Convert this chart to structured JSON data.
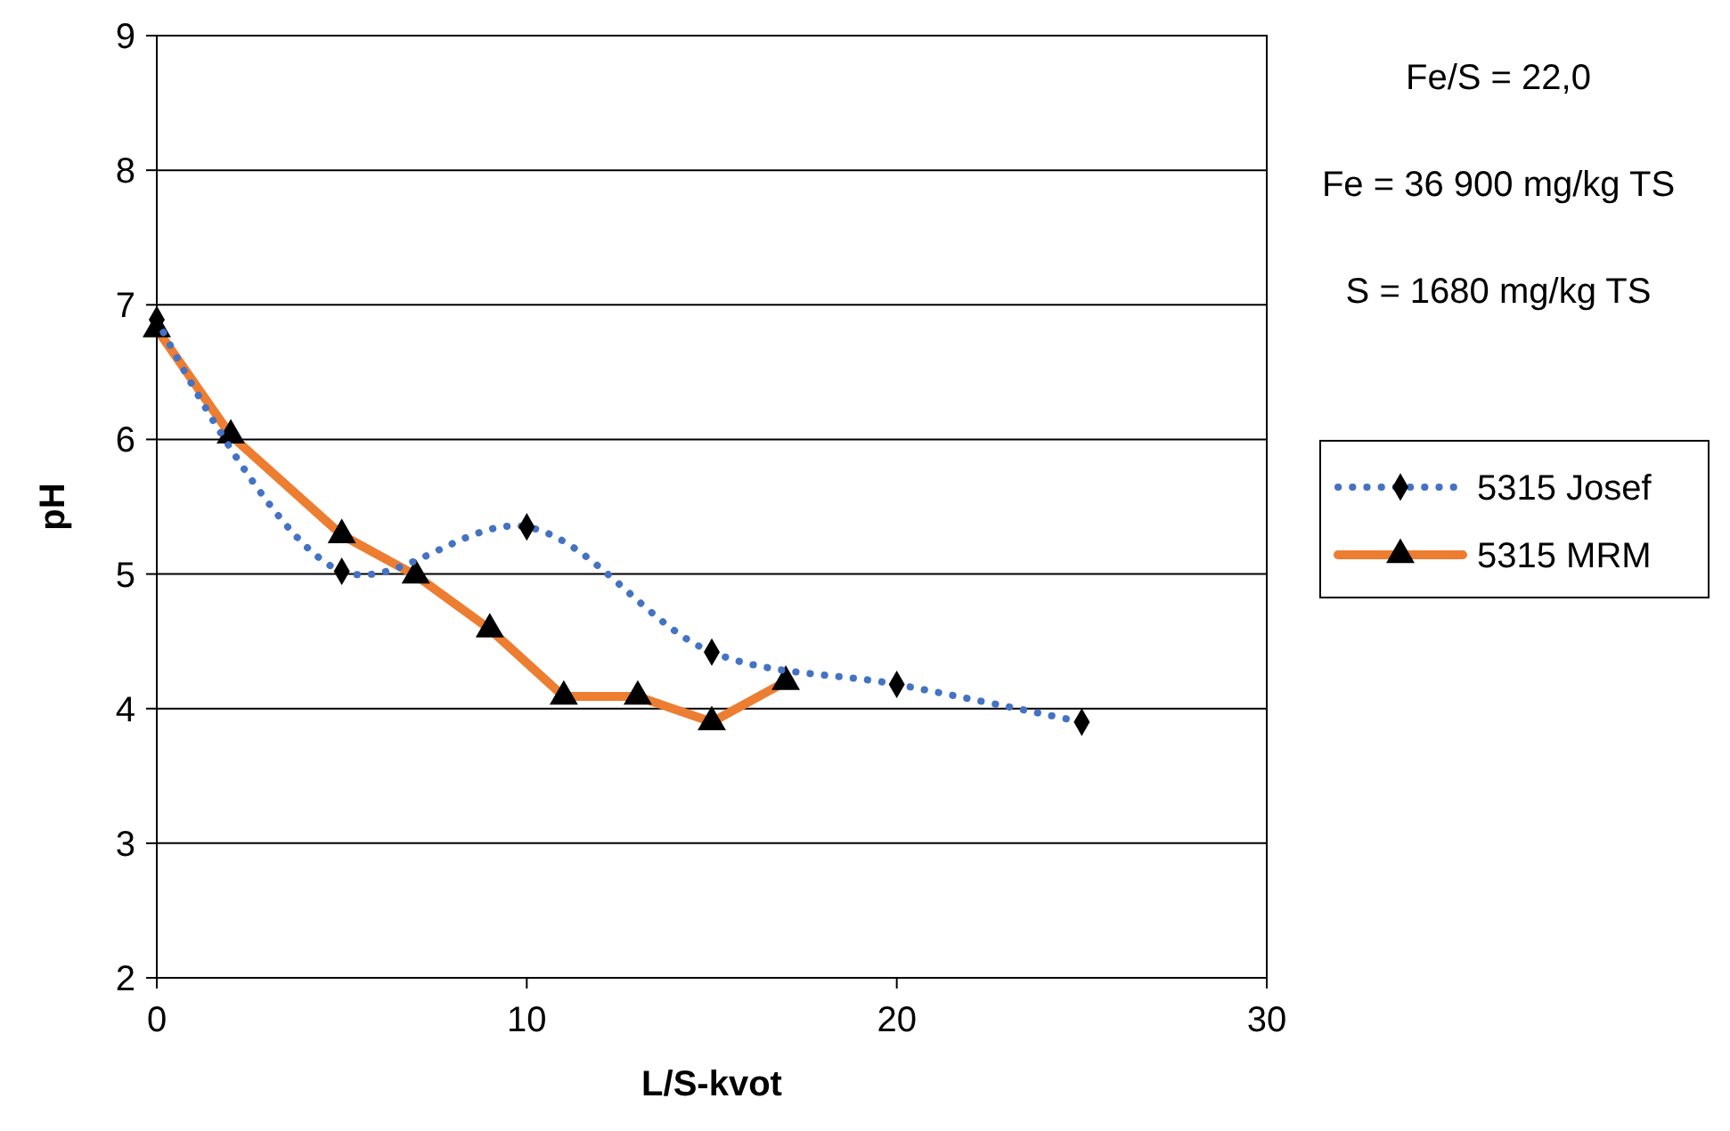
{
  "chart_data": {
    "type": "line",
    "xlabel": "L/S-kvot",
    "ylabel": "pH",
    "xlim": [
      0,
      30
    ],
    "xticks": [
      0,
      10,
      20,
      30
    ],
    "ylim": [
      2,
      9
    ],
    "yticks": [
      2,
      3,
      4,
      5,
      6,
      7,
      8,
      9
    ],
    "grid": "y",
    "legend": "right",
    "annotations": [
      "Fe/S = 22,0",
      "Fe = 36 900 mg/kg TS",
      "S = 1680 mg/kg TS"
    ],
    "series": [
      {
        "name": "5315 Josef",
        "color": "#4472c4",
        "marker": "diamond",
        "line_style": "dotted",
        "x": [
          0,
          5,
          10,
          15,
          20,
          25
        ],
        "values": [
          6.89,
          5.02,
          5.35,
          4.42,
          4.18,
          3.9
        ]
      },
      {
        "name": "5315 MRM",
        "color": "#ed7d31",
        "marker": "triangle",
        "line_style": "solid",
        "x": [
          0,
          2,
          5,
          7,
          9,
          11,
          13,
          15,
          17
        ],
        "values": [
          6.82,
          6.03,
          5.29,
          4.99,
          4.59,
          4.09,
          4.09,
          3.9,
          4.2
        ]
      }
    ]
  }
}
